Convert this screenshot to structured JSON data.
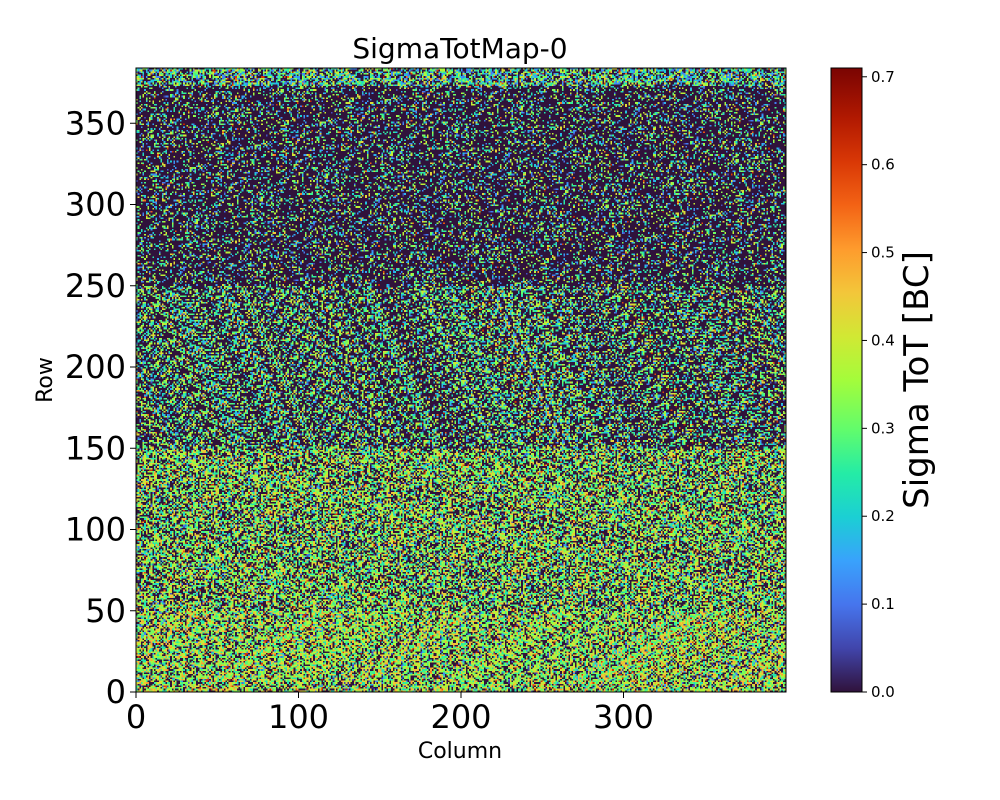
{
  "chart_data": {
    "type": "heatmap",
    "title": "SigmaTotMap-0",
    "xlabel": "Column",
    "ylabel": "Row",
    "xlim": [
      0,
      400
    ],
    "ylim": [
      0,
      384
    ],
    "x_ticks": [
      "0",
      "100",
      "200",
      "300"
    ],
    "y_ticks": [
      "0",
      "50",
      "100",
      "150",
      "200",
      "250",
      "300",
      "350"
    ],
    "n_columns": 400,
    "n_rows": 384,
    "colorbar": {
      "label": "Sigma ToT [BC]",
      "colormap": "turbo",
      "range": [
        0.0,
        0.71
      ],
      "ticks": [
        "0.0",
        "0.1",
        "0.2",
        "0.3",
        "0.4",
        "0.5",
        "0.6",
        "0.7"
      ]
    },
    "value_profile_by_row": [
      {
        "row_range": [
          0,
          50
        ],
        "zero_fraction": 0.28,
        "typical_nonzero": [
          0.22,
          0.5
        ]
      },
      {
        "row_range": [
          50,
          150
        ],
        "zero_fraction": 0.38,
        "typical_nonzero": [
          0.2,
          0.48
        ]
      },
      {
        "row_range": [
          150,
          250
        ],
        "zero_fraction": 0.55,
        "typical_nonzero": [
          0.15,
          0.45
        ]
      },
      {
        "row_range": [
          250,
          384
        ],
        "zero_fraction": 0.72,
        "typical_nonzero": [
          0.1,
          0.45
        ]
      }
    ]
  }
}
